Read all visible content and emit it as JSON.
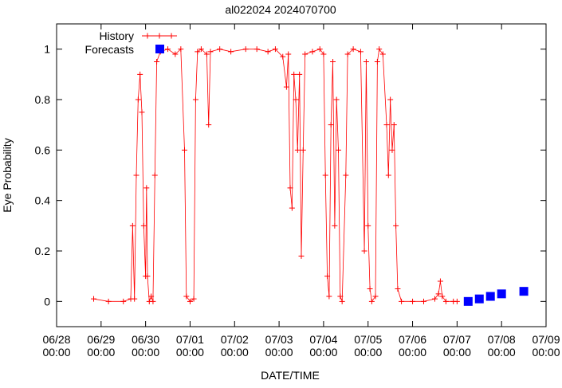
{
  "chart_data": {
    "type": "line",
    "title": "al022024 2024070700",
    "xlabel": "DATE/TIME",
    "ylabel": "Eye Probability",
    "xlim": [
      "2024-06-28T00:00",
      "2024-07-09T00:00"
    ],
    "ylim": [
      -0.1,
      1.1
    ],
    "yticks": [
      0,
      0.2,
      0.4,
      0.6,
      0.8,
      1
    ],
    "ytick_labels": [
      "0",
      "0.2",
      "0.4",
      "0.6",
      "0.8",
      "1"
    ],
    "xticks": [
      {
        "date": "2024-06-28T00:00",
        "label_top": "06/28",
        "label_bottom": "00:00"
      },
      {
        "date": "2024-06-29T00:00",
        "label_top": "06/29",
        "label_bottom": "00:00"
      },
      {
        "date": "2024-06-30T00:00",
        "label_top": "06/30",
        "label_bottom": "00:00"
      },
      {
        "date": "2024-07-01T00:00",
        "label_top": "07/01",
        "label_bottom": "00:00"
      },
      {
        "date": "2024-07-02T00:00",
        "label_top": "07/02",
        "label_bottom": "00:00"
      },
      {
        "date": "2024-07-03T00:00",
        "label_top": "07/03",
        "label_bottom": "00:00"
      },
      {
        "date": "2024-07-04T00:00",
        "label_top": "07/04",
        "label_bottom": "00:00"
      },
      {
        "date": "2024-07-05T00:00",
        "label_top": "07/05",
        "label_bottom": "00:00"
      },
      {
        "date": "2024-07-06T00:00",
        "label_top": "07/06",
        "label_bottom": "00:00"
      },
      {
        "date": "2024-07-07T00:00",
        "label_top": "07/07",
        "label_bottom": "00:00"
      },
      {
        "date": "2024-07-08T00:00",
        "label_top": "07/08",
        "label_bottom": "00:00"
      },
      {
        "date": "2024-07-09T00:00",
        "label_top": "07/09",
        "label_bottom": "00:00"
      }
    ],
    "grid": false,
    "legend": "top-left",
    "series": [
      {
        "name": "History",
        "color": "#ff0000",
        "style": "line-plus",
        "points": [
          [
            "2024-06-28T20:00",
            0.01
          ],
          [
            "2024-06-29T04:00",
            0.0
          ],
          [
            "2024-06-29T12:00",
            0.0
          ],
          [
            "2024-06-29T16:00",
            0.01
          ],
          [
            "2024-06-29T17:00",
            0.3
          ],
          [
            "2024-06-29T18:00",
            0.01
          ],
          [
            "2024-06-29T19:00",
            0.5
          ],
          [
            "2024-06-29T20:00",
            0.8
          ],
          [
            "2024-06-29T21:00",
            0.9
          ],
          [
            "2024-06-29T22:00",
            0.75
          ],
          [
            "2024-06-29T23:00",
            0.3
          ],
          [
            "2024-06-30T00:00",
            0.1
          ],
          [
            "2024-06-30T00:30",
            0.45
          ],
          [
            "2024-06-30T01:00",
            0.1
          ],
          [
            "2024-06-30T02:00",
            0.0
          ],
          [
            "2024-06-30T03:00",
            0.02
          ],
          [
            "2024-06-30T04:00",
            0.0
          ],
          [
            "2024-06-30T05:00",
            0.5
          ],
          [
            "2024-06-30T06:00",
            0.95
          ],
          [
            "2024-06-30T08:00",
            0.99
          ],
          [
            "2024-06-30T12:00",
            1.0
          ],
          [
            "2024-06-30T16:00",
            0.98
          ],
          [
            "2024-06-30T19:00",
            1.0
          ],
          [
            "2024-06-30T21:00",
            0.6
          ],
          [
            "2024-06-30T22:00",
            0.02
          ],
          [
            "2024-07-01T00:00",
            0.0
          ],
          [
            "2024-07-01T02:00",
            0.01
          ],
          [
            "2024-07-01T03:00",
            0.8
          ],
          [
            "2024-07-01T04:00",
            0.99
          ],
          [
            "2024-07-01T06:00",
            1.0
          ],
          [
            "2024-07-01T09:00",
            0.98
          ],
          [
            "2024-07-01T10:00",
            0.7
          ],
          [
            "2024-07-01T11:00",
            0.99
          ],
          [
            "2024-07-01T16:00",
            1.0
          ],
          [
            "2024-07-01T22:00",
            0.99
          ],
          [
            "2024-07-02T06:00",
            1.0
          ],
          [
            "2024-07-02T12:00",
            1.0
          ],
          [
            "2024-07-02T18:00",
            0.99
          ],
          [
            "2024-07-02T22:00",
            1.0
          ],
          [
            "2024-07-03T02:00",
            0.97
          ],
          [
            "2024-07-03T04:00",
            0.85
          ],
          [
            "2024-07-03T05:00",
            0.98
          ],
          [
            "2024-07-03T06:00",
            0.45
          ],
          [
            "2024-07-03T07:00",
            0.37
          ],
          [
            "2024-07-03T08:00",
            0.9
          ],
          [
            "2024-07-03T09:00",
            0.8
          ],
          [
            "2024-07-03T10:00",
            0.6
          ],
          [
            "2024-07-03T11:00",
            0.9
          ],
          [
            "2024-07-03T12:00",
            0.18
          ],
          [
            "2024-07-03T13:00",
            0.6
          ],
          [
            "2024-07-03T14:00",
            0.98
          ],
          [
            "2024-07-03T18:00",
            0.99
          ],
          [
            "2024-07-03T22:00",
            1.0
          ],
          [
            "2024-07-04T00:00",
            0.98
          ],
          [
            "2024-07-04T01:00",
            0.5
          ],
          [
            "2024-07-04T02:00",
            0.1
          ],
          [
            "2024-07-04T03:00",
            0.02
          ],
          [
            "2024-07-04T04:00",
            0.7
          ],
          [
            "2024-07-04T05:00",
            0.95
          ],
          [
            "2024-07-04T06:00",
            0.3
          ],
          [
            "2024-07-04T07:00",
            0.8
          ],
          [
            "2024-07-04T08:00",
            0.6
          ],
          [
            "2024-07-04T09:00",
            0.02
          ],
          [
            "2024-07-04T10:00",
            0.0
          ],
          [
            "2024-07-04T12:00",
            0.5
          ],
          [
            "2024-07-04T13:00",
            0.98
          ],
          [
            "2024-07-04T16:00",
            1.0
          ],
          [
            "2024-07-04T20:00",
            0.99
          ],
          [
            "2024-07-04T22:00",
            0.2
          ],
          [
            "2024-07-04T23:00",
            0.95
          ],
          [
            "2024-07-05T00:00",
            0.3
          ],
          [
            "2024-07-05T01:00",
            0.05
          ],
          [
            "2024-07-05T02:00",
            0.0
          ],
          [
            "2024-07-05T04:00",
            0.02
          ],
          [
            "2024-07-05T05:00",
            0.95
          ],
          [
            "2024-07-05T06:00",
            1.0
          ],
          [
            "2024-07-05T08:00",
            0.98
          ],
          [
            "2024-07-05T10:00",
            0.7
          ],
          [
            "2024-07-05T11:00",
            0.5
          ],
          [
            "2024-07-05T12:00",
            0.8
          ],
          [
            "2024-07-05T13:00",
            0.6
          ],
          [
            "2024-07-05T14:00",
            0.7
          ],
          [
            "2024-07-05T15:00",
            0.3
          ],
          [
            "2024-07-05T16:00",
            0.05
          ],
          [
            "2024-07-05T18:00",
            0.0
          ],
          [
            "2024-07-06T00:00",
            0.0
          ],
          [
            "2024-07-06T06:00",
            0.0
          ],
          [
            "2024-07-06T12:00",
            0.01
          ],
          [
            "2024-07-06T14:00",
            0.03
          ],
          [
            "2024-07-06T15:00",
            0.08
          ],
          [
            "2024-07-06T16:00",
            0.02
          ],
          [
            "2024-07-06T18:00",
            0.0
          ],
          [
            "2024-07-06T22:00",
            0.0
          ],
          [
            "2024-07-07T00:00",
            0.0
          ]
        ]
      },
      {
        "name": "Forecasts",
        "color": "#0000ff",
        "style": "square",
        "points": [
          [
            "2024-07-07T06:00",
            0.0
          ],
          [
            "2024-07-07T12:00",
            0.01
          ],
          [
            "2024-07-07T18:00",
            0.02
          ],
          [
            "2024-07-08T00:00",
            0.03
          ],
          [
            "2024-07-08T12:00",
            0.04
          ]
        ]
      }
    ]
  }
}
